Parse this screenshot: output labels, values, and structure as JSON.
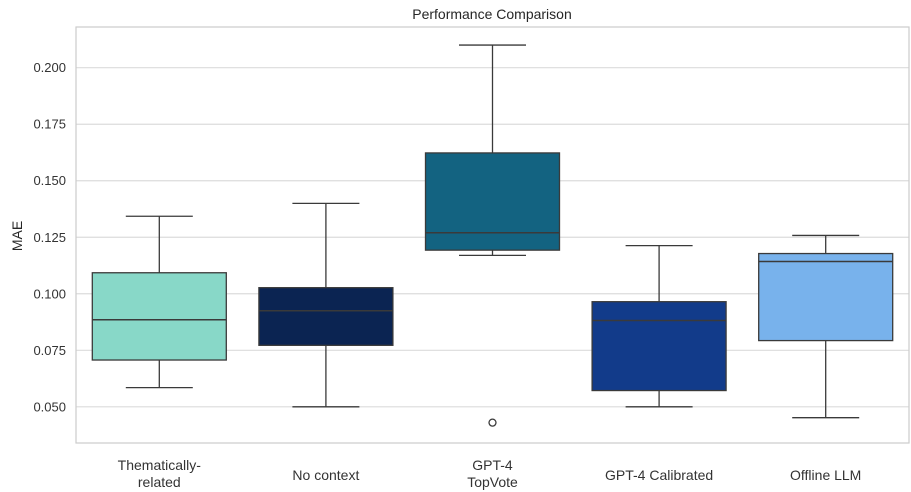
{
  "chart_data": {
    "type": "box",
    "title": "Performance Comparison",
    "xlabel": "",
    "ylabel": "MAE",
    "ylim": [
      0.034,
      0.218
    ],
    "yticks": [
      "0.050",
      "0.075",
      "0.100",
      "0.125",
      "0.150",
      "0.175",
      "0.200"
    ],
    "grid": true,
    "categories": [
      {
        "label_lines": [
          "Thematically-",
          "related"
        ],
        "whisker_low": 0.0585,
        "q1": 0.0707,
        "median": 0.0885,
        "q3": 0.1093,
        "whisker_high": 0.1343,
        "outliers": [],
        "color": "#88d8c8"
      },
      {
        "label_lines": [
          "No context"
        ],
        "whisker_low": 0.05,
        "q1": 0.0772,
        "median": 0.0925,
        "q3": 0.1027,
        "whisker_high": 0.14,
        "outliers": [],
        "color": "#0b2452"
      },
      {
        "label_lines": [
          "GPT-4",
          "TopVote"
        ],
        "whisker_low": 0.117,
        "q1": 0.1193,
        "median": 0.127,
        "q3": 0.1623,
        "whisker_high": 0.21,
        "outliers": [
          0.043
        ],
        "color": "#136381"
      },
      {
        "label_lines": [
          "GPT-4 Calibrated"
        ],
        "whisker_low": 0.05,
        "q1": 0.0572,
        "median": 0.0882,
        "q3": 0.0965,
        "whisker_high": 0.1213,
        "outliers": [],
        "color": "#123b8a"
      },
      {
        "label_lines": [
          "Offline LLM"
        ],
        "whisker_low": 0.0452,
        "q1": 0.0793,
        "median": 0.1143,
        "q3": 0.1178,
        "whisker_high": 0.1258,
        "outliers": [],
        "color": "#78b2ec"
      }
    ]
  }
}
